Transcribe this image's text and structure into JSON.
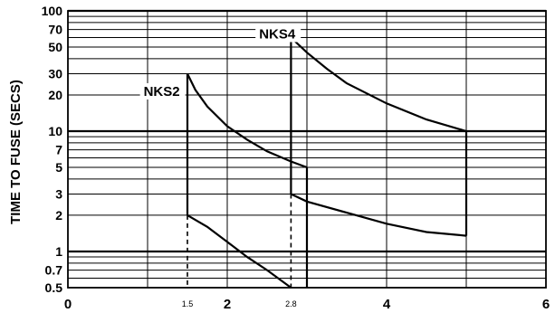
{
  "chart_data": {
    "type": "line",
    "title": "",
    "xlabel": "",
    "ylabel": "TIME TO FUSE (SECS)",
    "xlim": [
      0,
      6
    ],
    "ylim": [
      0.5,
      100
    ],
    "yscale": "log",
    "grid": true,
    "legend": "none",
    "x_ticks": [
      {
        "value": 0,
        "label": "0",
        "small": false
      },
      {
        "value": 1.5,
        "label": "1.5",
        "small": true
      },
      {
        "value": 2,
        "label": "2",
        "small": false
      },
      {
        "value": 2.8,
        "label": "2.8",
        "small": true
      },
      {
        "value": 4,
        "label": "4",
        "small": false
      },
      {
        "value": 6,
        "label": "6",
        "small": false
      }
    ],
    "x_gridlines": [
      1,
      2,
      3,
      4,
      5,
      6
    ],
    "y_ticks": [
      0.5,
      0.7,
      1,
      2,
      3,
      5,
      7,
      10,
      20,
      30,
      50,
      70,
      100
    ],
    "y_tick_labels": [
      "0.5",
      "0.7",
      "1",
      "2",
      "3",
      "5",
      "7",
      "10",
      "20",
      "30",
      "50",
      "70",
      "100"
    ],
    "y_gridlines": [
      0.6,
      0.7,
      0.8,
      0.9,
      1,
      2,
      3,
      4,
      5,
      6,
      7,
      8,
      9,
      10,
      20,
      30,
      40,
      50,
      60,
      70,
      80,
      90,
      100
    ],
    "y_heavy_gridlines": [
      1,
      10,
      100
    ],
    "series": [
      {
        "name": "NKS2",
        "upper": {
          "x": [
            1.5,
            1.6,
            1.75,
            2.0,
            2.25,
            2.5,
            2.8,
            3.0
          ],
          "y": [
            30,
            22,
            16,
            11,
            8.5,
            6.8,
            5.6,
            5.0
          ]
        },
        "lower": {
          "x": [
            1.5,
            1.75,
            2.0,
            2.25,
            2.5,
            2.8
          ],
          "y": [
            2.0,
            1.6,
            1.2,
            0.9,
            0.7,
            0.5
          ]
        },
        "left_x": 1.5,
        "right_x": 3.0
      },
      {
        "name": "NKS4",
        "upper": {
          "x": [
            2.8,
            3.0,
            3.25,
            3.5,
            4.0,
            4.5,
            5.0
          ],
          "y": [
            60,
            45,
            33,
            25,
            17,
            12.5,
            10
          ]
        },
        "lower": {
          "x": [
            2.8,
            3.0,
            3.5,
            4.0,
            4.5,
            5.0
          ],
          "y": [
            3.0,
            2.6,
            2.1,
            1.7,
            1.45,
            1.35
          ]
        },
        "left_x": 2.8,
        "right_x": 5.0
      }
    ],
    "dashed_drops": [
      1.5,
      2.8
    ],
    "annotations": [
      {
        "text": "NKS2",
        "x": 0.95,
        "y": 20
      },
      {
        "text": "NKS4",
        "x": 2.4,
        "y": 60
      }
    ]
  }
}
